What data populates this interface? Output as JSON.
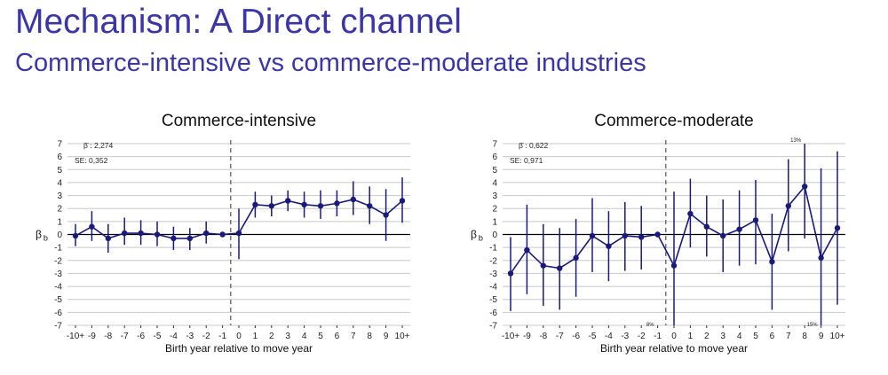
{
  "slide": {
    "title": "Mechanism: A Direct channel",
    "subtitle": "Commerce-intensive vs commerce-moderate industries"
  },
  "colors": {
    "title": "#3a36a8",
    "series": "#1a1a7a",
    "grid": "#c8c8c8"
  },
  "chart_data": [
    {
      "type": "line",
      "title": "Commerce-intensive",
      "xlabel": "Birth year relative to move year",
      "ylabel": "β b",
      "ylim": [
        -7,
        7
      ],
      "yticks": [
        7,
        6,
        5,
        4,
        3,
        2,
        1,
        0,
        -1,
        -2,
        -3,
        -4,
        -5,
        -6,
        -7
      ],
      "categories": [
        "-10+",
        "-9",
        "-8",
        "-7",
        "-6",
        "-5",
        "-4",
        "-3",
        "-2",
        "-1",
        "0",
        "1",
        "2",
        "3",
        "4",
        "5",
        "6",
        "7",
        "8",
        "9",
        "10+"
      ],
      "values": [
        -0.1,
        0.6,
        -0.3,
        0.1,
        0.1,
        0.0,
        -0.3,
        -0.3,
        0.1,
        0.0,
        0.1,
        2.3,
        2.2,
        2.6,
        2.3,
        2.2,
        2.4,
        2.7,
        2.2,
        1.5,
        2.6
      ],
      "ci_low": [
        -0.9,
        -0.5,
        -1.4,
        -0.8,
        -0.8,
        -0.9,
        -1.2,
        -1.2,
        -0.7,
        0.0,
        -1.9,
        1.3,
        1.4,
        1.8,
        1.3,
        1.2,
        1.4,
        1.5,
        0.8,
        -0.5,
        0.9
      ],
      "ci_high": [
        0.8,
        1.8,
        0.8,
        1.3,
        1.1,
        1.0,
        0.6,
        0.5,
        1.0,
        0.0,
        2.0,
        3.3,
        3.0,
        3.4,
        3.3,
        3.4,
        3.4,
        4.1,
        3.7,
        3.5,
        4.4
      ],
      "stats": {
        "beta_label": "β̄ :",
        "beta_value": "2,274",
        "se_label": "SE:",
        "se_value": "0,352"
      },
      "reference_line": {
        "x": "-1",
        "style": "dashed"
      },
      "annotations": []
    },
    {
      "type": "line",
      "title": "Commerce-moderate",
      "xlabel": "Birth year relative to move year",
      "ylabel": "β b",
      "ylim": [
        -7,
        7
      ],
      "yticks": [
        7,
        6,
        5,
        4,
        3,
        2,
        1,
        0,
        -1,
        -2,
        -3,
        -4,
        -5,
        -6,
        -7
      ],
      "categories": [
        "-10+",
        "-9",
        "-8",
        "-7",
        "-6",
        "-5",
        "-4",
        "-3",
        "-2",
        "-1",
        "0",
        "1",
        "2",
        "3",
        "4",
        "5",
        "6",
        "7",
        "8",
        "9",
        "10+"
      ],
      "values": [
        -3.0,
        -1.2,
        -2.4,
        -2.6,
        -1.8,
        -0.1,
        -0.9,
        -0.1,
        -0.2,
        0.0,
        -2.4,
        1.6,
        0.6,
        -0.1,
        0.4,
        1.1,
        -2.1,
        2.2,
        3.7,
        -1.8,
        0.5
      ],
      "ci_low": [
        -5.9,
        -4.6,
        -5.5,
        -5.8,
        -4.8,
        -2.9,
        -3.6,
        -2.8,
        -2.7,
        0.0,
        -7.3,
        -1.0,
        -1.7,
        -2.9,
        -2.4,
        -2.3,
        -5.8,
        -1.3,
        -0.3,
        -7.3,
        -5.4
      ],
      "ci_high": [
        -0.2,
        2.3,
        0.8,
        0.5,
        1.2,
        2.8,
        1.8,
        2.5,
        2.2,
        0.0,
        3.3,
        4.3,
        3.0,
        2.7,
        3.4,
        4.2,
        1.6,
        5.8,
        7.3,
        5.1,
        6.4
      ],
      "stats": {
        "beta_label": "β̄ :",
        "beta_value": "0,622",
        "se_label": "SE:",
        "se_value": "0,971"
      },
      "reference_line": {
        "x": "-1",
        "style": "dashed"
      },
      "annotations": [
        {
          "text": "8%",
          "category": "-1",
          "y": -7
        },
        {
          "text": "13%",
          "category": "8",
          "y": 7
        },
        {
          "text": "15%",
          "category": "9",
          "y": -7
        }
      ]
    }
  ]
}
